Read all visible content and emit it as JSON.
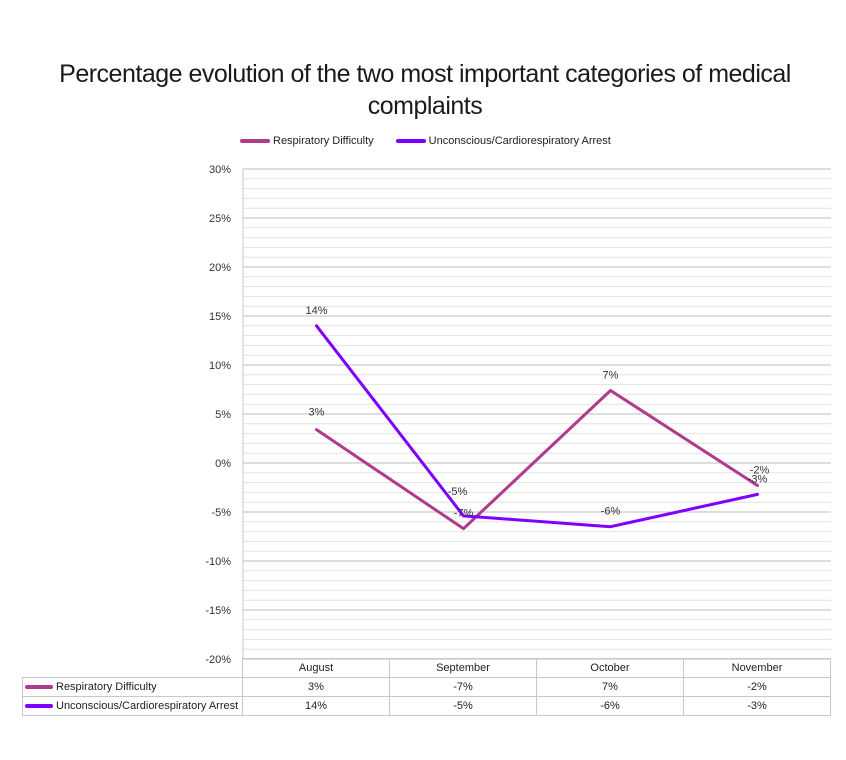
{
  "chart_data": {
    "type": "line",
    "title": "Percentage evolution of the two most important categories of medical complaints",
    "categories": [
      "August",
      "September",
      "October",
      "November"
    ],
    "series": [
      {
        "name": "Respiratory Difficulty",
        "color": "#b03a8c",
        "values": [
          3.4,
          -6.7,
          7.4,
          -2.3
        ],
        "labels": [
          "3%",
          "-7%",
          "7%",
          "-2%"
        ],
        "table_values": [
          "3%",
          "-7%",
          "7%",
          "-2%"
        ]
      },
      {
        "name": "Unconscious/Cardiorespiratory Arrest",
        "color": "#8000ff",
        "values": [
          14,
          -5.4,
          -6.5,
          -3.2
        ],
        "labels": [
          "14%",
          "-5%",
          "-6%",
          "-3%"
        ],
        "table_values": [
          "14%",
          "-5%",
          "-6%",
          "-3%"
        ]
      }
    ],
    "ylim": [
      -20,
      30
    ],
    "yticks": [
      30,
      25,
      20,
      15,
      10,
      5,
      0,
      -5,
      -10,
      -15,
      -20
    ],
    "ytick_labels": [
      "30%",
      "25%",
      "20%",
      "15%",
      "10%",
      "5%",
      "0%",
      "-5%",
      "-10%",
      "-15%",
      "-20%"
    ],
    "xlabel": "",
    "ylabel": "",
    "legend": "top",
    "data_table": true
  }
}
